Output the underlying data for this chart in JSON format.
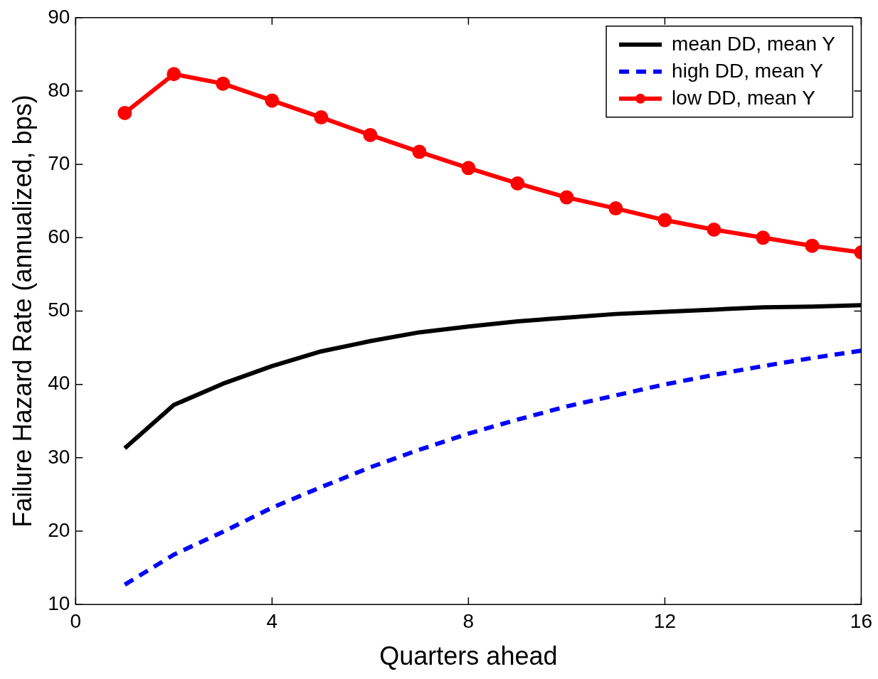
{
  "chart_data": {
    "type": "line",
    "xlabel": "Quarters ahead",
    "ylabel": "Failure Hazard Rate (annualized, bps)",
    "x": [
      1,
      2,
      3,
      4,
      5,
      6,
      7,
      8,
      9,
      10,
      11,
      12,
      13,
      14,
      15,
      16
    ],
    "xlim": [
      0,
      16
    ],
    "xticks": [
      0,
      4,
      8,
      12,
      16
    ],
    "ylim": [
      10,
      90
    ],
    "yticks": [
      10,
      20,
      30,
      40,
      50,
      60,
      70,
      80,
      90
    ],
    "grid": false,
    "legend": "top right",
    "series": [
      {
        "name": "mean DD, mean Y",
        "color": "#000000",
        "line_style": "solid",
        "marker": "none",
        "values": [
          31.3,
          37.2,
          40.1,
          42.5,
          44.5,
          45.9,
          47.1,
          47.9,
          48.6,
          49.1,
          49.6,
          49.9,
          50.2,
          50.5,
          50.6,
          50.8
        ]
      },
      {
        "name": "high DD, mean Y",
        "color": "#0000ff",
        "line_style": "dashed",
        "marker": "none",
        "values": [
          12.7,
          16.8,
          19.9,
          23.2,
          26.0,
          28.7,
          31.1,
          33.3,
          35.2,
          37.0,
          38.5,
          40.0,
          41.3,
          42.5,
          43.6,
          44.6
        ]
      },
      {
        "name": "low DD, mean Y",
        "color": "#ff0000",
        "line_style": "solid",
        "marker": "circle",
        "values": [
          77.0,
          82.3,
          81.0,
          78.7,
          76.4,
          74.0,
          71.7,
          69.5,
          67.4,
          65.5,
          64.0,
          62.4,
          61.1,
          60.0,
          58.9,
          58.0
        ]
      }
    ]
  }
}
